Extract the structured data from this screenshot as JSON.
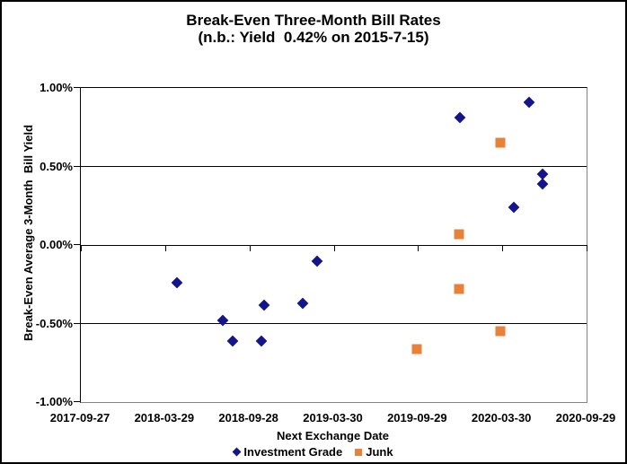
{
  "chart_data": {
    "type": "scatter",
    "title": "Break-Even Three-Month Bill Rates",
    "subtitle": "(n.b.: Yield  0.42% on 2015-7-15)",
    "xlabel": "Next Exchange Date",
    "ylabel": "Break-Even Average 3-Month  Bill Yield",
    "x_axis": {
      "type": "date",
      "min": "2017-09-27",
      "max": "2020-09-29",
      "tick_labels": [
        "2017-09-27",
        "2018-03-29",
        "2018-09-28",
        "2019-03-30",
        "2019-09-29",
        "2020-03-30",
        "2020-09-29"
      ]
    },
    "y_axis": {
      "min": -1.0,
      "max": 1.0,
      "tick_values": [
        1.0,
        0.5,
        0.0,
        -0.5,
        -1.0
      ],
      "tick_labels": [
        "1.00%",
        "0.50%",
        "0.00%",
        "-0.50%",
        "-1.00%"
      ],
      "unit": "percent",
      "gridlines": true
    },
    "legend_position": "bottom",
    "series": [
      {
        "name": "Investment Grade",
        "marker": "diamond",
        "color": "#14148c",
        "points": [
          {
            "x": "2018-04-24",
            "y": -0.24
          },
          {
            "x": "2018-08-02",
            "y": -0.48
          },
          {
            "x": "2018-08-22",
            "y": -0.61
          },
          {
            "x": "2018-10-24",
            "y": -0.61
          },
          {
            "x": "2018-10-29",
            "y": -0.38
          },
          {
            "x": "2019-01-22",
            "y": -0.37
          },
          {
            "x": "2019-02-22",
            "y": -0.1
          },
          {
            "x": "2019-12-29",
            "y": 0.81
          },
          {
            "x": "2020-04-24",
            "y": 0.24
          },
          {
            "x": "2020-05-27",
            "y": 0.91
          },
          {
            "x": "2020-06-26",
            "y": 0.45
          },
          {
            "x": "2020-06-26",
            "y": 0.39
          }
        ]
      },
      {
        "name": "Junk",
        "marker": "square",
        "color": "#e8823a",
        "points": [
          {
            "x": "2019-09-27",
            "y": -0.66
          },
          {
            "x": "2019-12-27",
            "y": -0.28
          },
          {
            "x": "2019-12-27",
            "y": 0.07
          },
          {
            "x": "2020-03-26",
            "y": 0.65
          },
          {
            "x": "2020-03-26",
            "y": -0.55
          }
        ]
      }
    ]
  },
  "colors": {
    "investment_grade": "#14148c",
    "junk": "#e8823a",
    "gridline": "#000000",
    "plot_border": "#848284",
    "background": "#ffffff",
    "text": "#000000"
  }
}
